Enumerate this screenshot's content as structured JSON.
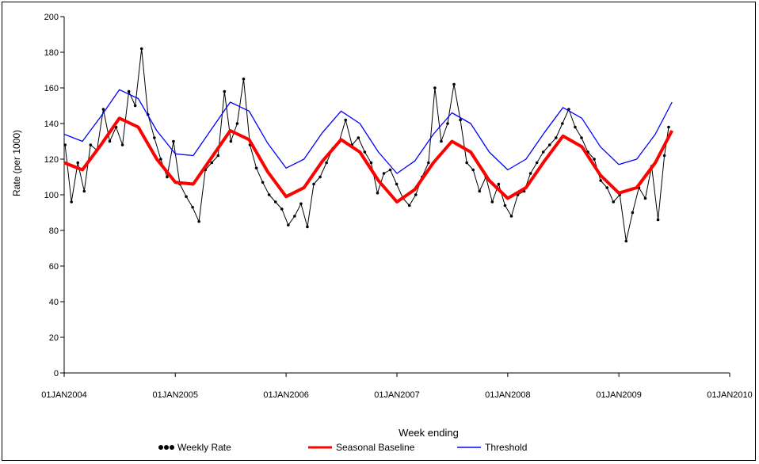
{
  "chart_data": {
    "type": "line",
    "title": "",
    "xlabel": "Week ending",
    "ylabel": "Rate (per 1000)",
    "ylim": [
      0,
      200
    ],
    "yticks": [
      0,
      20,
      40,
      60,
      80,
      100,
      120,
      140,
      160,
      180,
      200
    ],
    "xlim": [
      "2004-01-01",
      "2010-01-01"
    ],
    "xticks": [
      "2004-01-01",
      "2005-01-01",
      "2006-01-01",
      "2007-01-01",
      "2008-01-01",
      "2009-01-01",
      "2010-01-01"
    ],
    "xtick_labels": [
      "01JAN2004",
      "01JAN2005",
      "01JAN2006",
      "01JAN2007",
      "01JAN2008",
      "01JAN2009",
      "01JAN2010"
    ],
    "grid": false,
    "legend_position": "bottom",
    "series": [
      {
        "name": "Weekly Rate",
        "color": "#000000",
        "marker": "dot",
        "x": [
          "2004-01-04",
          "2004-01-25",
          "2004-02-15",
          "2004-03-07",
          "2004-03-28",
          "2004-04-18",
          "2004-05-09",
          "2004-05-30",
          "2004-06-20",
          "2004-07-11",
          "2004-08-01",
          "2004-08-22",
          "2004-09-12",
          "2004-10-03",
          "2004-10-24",
          "2004-11-14",
          "2004-12-05",
          "2004-12-26",
          "2005-01-16",
          "2005-02-06",
          "2005-02-27",
          "2005-03-20",
          "2005-04-10",
          "2005-05-01",
          "2005-05-22",
          "2005-06-12",
          "2005-07-03",
          "2005-07-24",
          "2005-08-14",
          "2005-09-04",
          "2005-09-25",
          "2005-10-16",
          "2005-11-06",
          "2005-11-27",
          "2005-12-18",
          "2006-01-08",
          "2006-01-29",
          "2006-02-19",
          "2006-03-12",
          "2006-04-02",
          "2006-04-23",
          "2006-05-14",
          "2006-06-04",
          "2006-06-25",
          "2006-07-16",
          "2006-08-06",
          "2006-08-27",
          "2006-09-17",
          "2006-10-08",
          "2006-10-29",
          "2006-11-19",
          "2006-12-10",
          "2006-12-31",
          "2007-01-21",
          "2007-02-11",
          "2007-03-04",
          "2007-03-25",
          "2007-04-15",
          "2007-05-06",
          "2007-05-27",
          "2007-06-17",
          "2007-07-08",
          "2007-07-29",
          "2007-08-19",
          "2007-09-09",
          "2007-09-30",
          "2007-10-21",
          "2007-11-11",
          "2007-12-02",
          "2007-12-23",
          "2008-01-13",
          "2008-02-03",
          "2008-02-24",
          "2008-03-16",
          "2008-04-06",
          "2008-04-27",
          "2008-05-18",
          "2008-06-08",
          "2008-06-29",
          "2008-07-20",
          "2008-08-10",
          "2008-08-31",
          "2008-09-21",
          "2008-10-12",
          "2008-11-02",
          "2008-11-23",
          "2008-12-14",
          "2009-01-04",
          "2009-01-25",
          "2009-02-15",
          "2009-03-08",
          "2009-03-29",
          "2009-04-19",
          "2009-05-10",
          "2009-05-31",
          "2009-06-14"
        ],
        "values": [
          128,
          96,
          118,
          102,
          128,
          125,
          148,
          130,
          138,
          128,
          158,
          150,
          182,
          145,
          132,
          120,
          110,
          130,
          106,
          99,
          93,
          85,
          114,
          118,
          122,
          158,
          130,
          140,
          165,
          128,
          115,
          107,
          100,
          96,
          92,
          83,
          88,
          95,
          82,
          106,
          110,
          118,
          126,
          130,
          142,
          128,
          132,
          124,
          118,
          101,
          112,
          114,
          106,
          98,
          94,
          100,
          110,
          118,
          160,
          130,
          140,
          162,
          142,
          118,
          114,
          102,
          110,
          96,
          106,
          94,
          88,
          100,
          102,
          112,
          118,
          124,
          128,
          132,
          140,
          148,
          138,
          132,
          124,
          120,
          108,
          104,
          96,
          100,
          74,
          90,
          104,
          98,
          116,
          86,
          122,
          138
        ]
      },
      {
        "name": "Seasonal Baseline",
        "color": "#ff0000",
        "x": [
          "2004-01-01",
          "2004-03-01",
          "2004-05-01",
          "2004-07-01",
          "2004-09-01",
          "2004-11-01",
          "2005-01-01",
          "2005-03-01",
          "2005-05-01",
          "2005-07-01",
          "2005-09-01",
          "2005-11-01",
          "2006-01-01",
          "2006-03-01",
          "2006-05-01",
          "2006-07-01",
          "2006-09-01",
          "2006-11-01",
          "2007-01-01",
          "2007-03-01",
          "2007-05-01",
          "2007-07-01",
          "2007-09-01",
          "2007-11-01",
          "2008-01-01",
          "2008-03-01",
          "2008-05-01",
          "2008-07-01",
          "2008-09-01",
          "2008-11-01",
          "2009-01-01",
          "2009-03-01",
          "2009-05-01",
          "2009-06-25"
        ],
        "values": [
          118,
          114,
          128,
          143,
          138,
          120,
          107,
          106,
          121,
          136,
          131,
          113,
          99,
          104,
          119,
          131,
          124,
          108,
          96,
          103,
          118,
          130,
          124,
          108,
          98,
          104,
          119,
          133,
          127,
          111,
          101,
          104,
          118,
          136
        ]
      },
      {
        "name": "Threshold",
        "color": "#0000ff",
        "x": [
          "2004-01-01",
          "2004-03-01",
          "2004-05-01",
          "2004-07-01",
          "2004-09-01",
          "2004-11-01",
          "2005-01-01",
          "2005-03-01",
          "2005-05-01",
          "2005-07-01",
          "2005-09-01",
          "2005-11-01",
          "2006-01-01",
          "2006-03-01",
          "2006-05-01",
          "2006-07-01",
          "2006-09-01",
          "2006-11-01",
          "2007-01-01",
          "2007-03-01",
          "2007-05-01",
          "2007-07-01",
          "2007-09-01",
          "2007-11-01",
          "2008-01-01",
          "2008-03-01",
          "2008-05-01",
          "2008-07-01",
          "2008-09-01",
          "2008-11-01",
          "2009-01-01",
          "2009-03-01",
          "2009-05-01",
          "2009-06-25"
        ],
        "values": [
          134,
          130,
          144,
          159,
          154,
          136,
          123,
          122,
          137,
          152,
          147,
          129,
          115,
          120,
          135,
          147,
          140,
          124,
          112,
          119,
          134,
          146,
          140,
          124,
          114,
          120,
          135,
          149,
          143,
          127,
          117,
          120,
          134,
          152
        ]
      }
    ]
  }
}
